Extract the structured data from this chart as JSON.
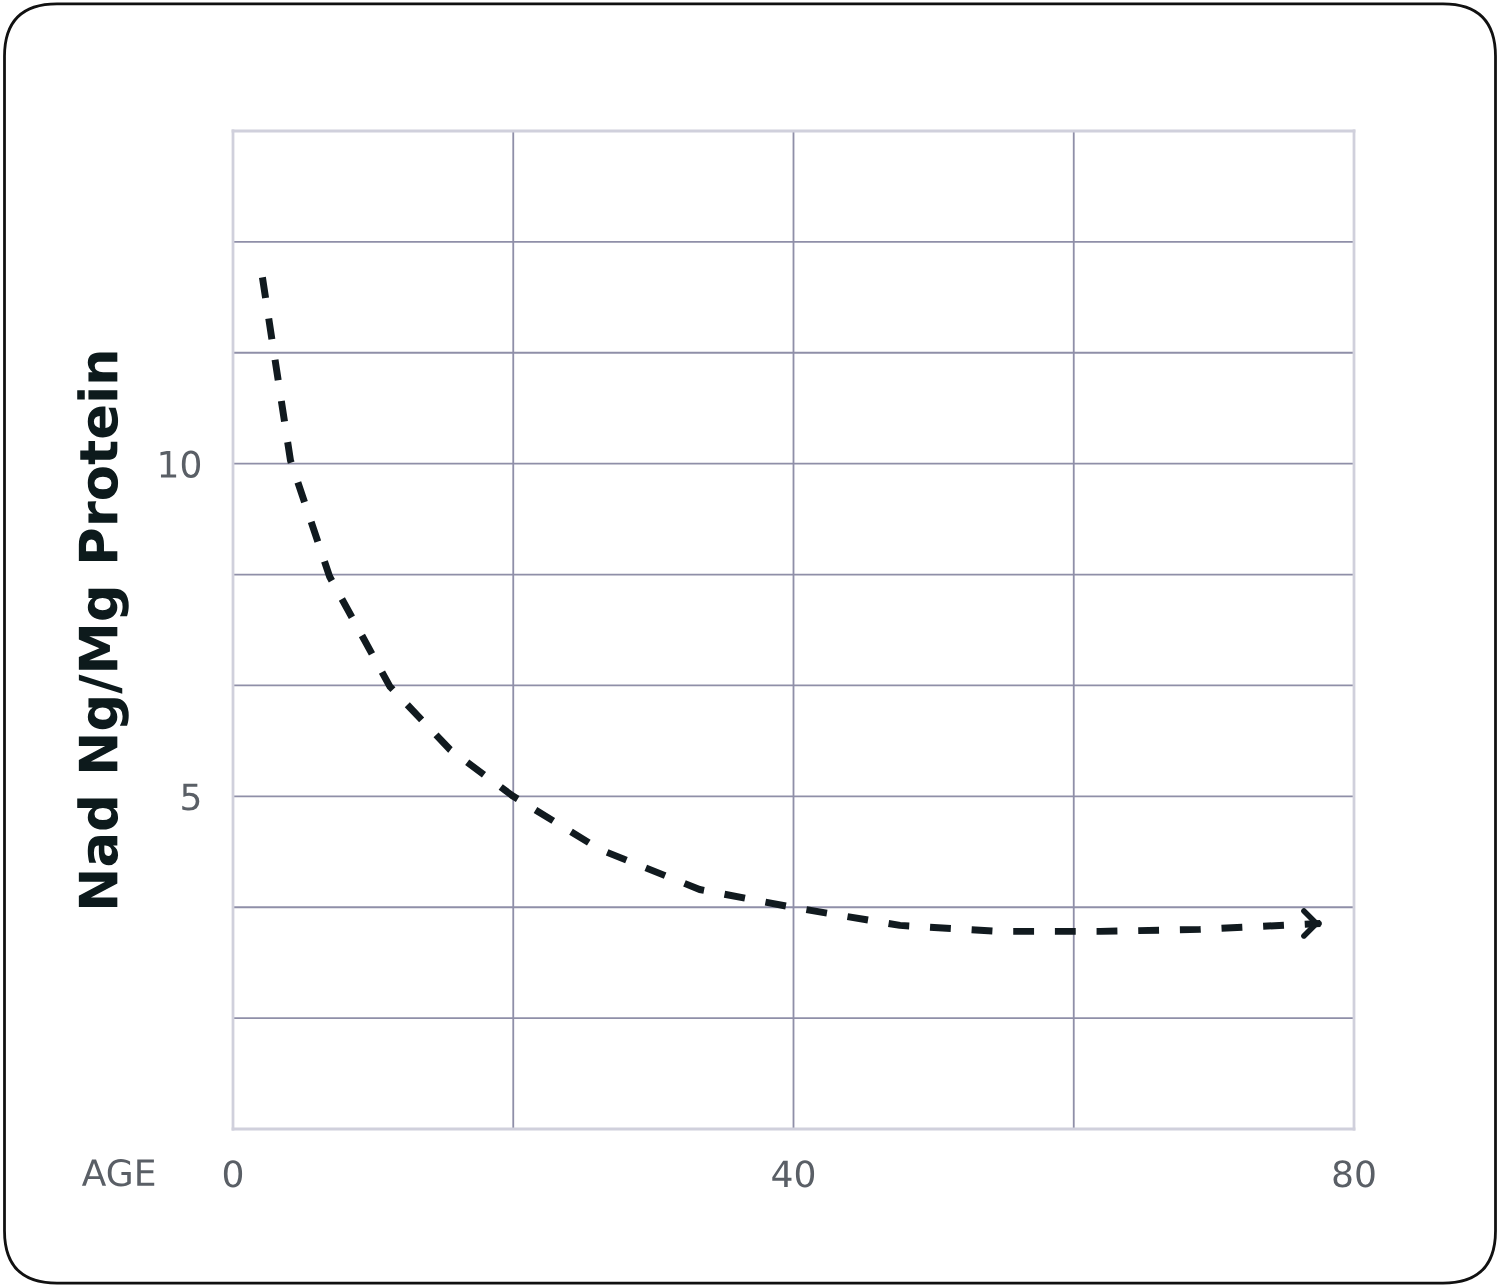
{
  "chart_data": {
    "type": "line",
    "xlabel": "AGE",
    "ylabel": "Nad Ng/Mg Protein",
    "x": [
      2.1,
      4.1,
      6.9,
      11.2,
      15.5,
      20,
      26.2,
      33.3,
      40,
      47.6,
      54.7,
      61.9,
      69,
      77.6
    ],
    "series": [
      {
        "color": "#111a1f",
        "values": [
          12.8,
          10.05,
          8.3,
          6.65,
          5.7,
          5.0,
          4.2,
          3.6,
          3.33,
          3.06,
          2.97,
          2.97,
          3.0,
          3.09
        ]
      }
    ],
    "xlim": [
      0,
      80
    ],
    "xticks": [
      0,
      {
        "value": 20,
        "label": null
      },
      40,
      {
        "value": 60,
        "label": null
      },
      80
    ],
    "ylim": [
      0,
      15
    ],
    "yticks": [
      {
        "value": 0,
        "label": null
      },
      {
        "value": 1.667,
        "label": null
      },
      {
        "value": 3.333,
        "label": null
      },
      5,
      {
        "value": 6.667,
        "label": null
      },
      {
        "value": 8.333,
        "label": null
      },
      10,
      {
        "value": 11.667,
        "label": null
      },
      {
        "value": 13.333,
        "label": null
      },
      {
        "value": 15,
        "label": null
      }
    ],
    "grid": true,
    "line_style": "dashed",
    "marker": "none",
    "legend": false
  }
}
